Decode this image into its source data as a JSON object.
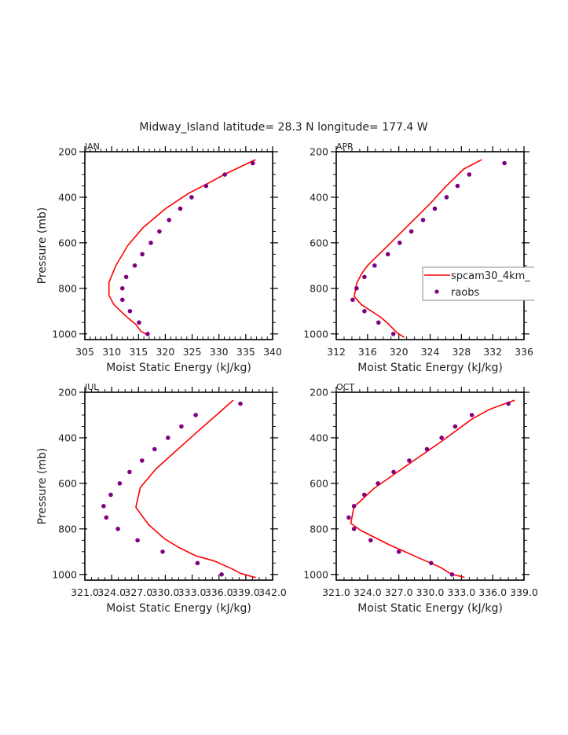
{
  "figure": {
    "title": "Midway_Island   latitude= 28.3 N longitude= 177.4 W",
    "colors": {
      "model": "#ff0000",
      "obs": "#800080",
      "axis": "#000000",
      "text": "#222222",
      "legend_border": "#888888"
    }
  },
  "chart_data": [
    {
      "type": "line",
      "panel": "JAN",
      "title": "JAN",
      "xlabel": "Moist Static Energy (kJ/kg)",
      "ylabel": "Pressure (mb)",
      "xlim": [
        305,
        340
      ],
      "ylim": [
        1025,
        200
      ],
      "xticks": [
        305,
        310,
        315,
        320,
        325,
        330,
        335,
        340
      ],
      "xtick_labels": [
        "305",
        "310",
        "315",
        "320",
        "325",
        "330",
        "335",
        "340"
      ],
      "yticks": [
        200,
        400,
        600,
        800,
        1000
      ],
      "ytick_labels": [
        "200",
        "400",
        "600",
        "800",
        "1000"
      ],
      "show_ylabel": true,
      "legend": false,
      "series": [
        {
          "name": "spcam30_4km_",
          "kind": "line",
          "x": [
            336.8,
            331.0,
            328.2,
            324.4,
            320.1,
            315.9,
            313.0,
            310.8,
            309.5,
            309.5,
            310.4,
            313.0,
            314.5,
            315.4,
            316.6
          ],
          "y": [
            235,
            300,
            336,
            382,
            449,
            532,
            612,
            699,
            774,
            831,
            871,
            929,
            958,
            987,
            1004
          ]
        },
        {
          "name": "raobs",
          "kind": "scatter",
          "x": [
            336.3,
            331.1,
            327.6,
            324.9,
            322.8,
            320.7,
            318.9,
            317.3,
            315.7,
            314.3,
            312.7,
            312.0,
            312.0,
            313.4,
            315.1,
            316.7
          ],
          "y": [
            250,
            300,
            350,
            400,
            450,
            500,
            550,
            600,
            650,
            700,
            750,
            800,
            850,
            900,
            950,
            1000
          ]
        }
      ]
    },
    {
      "type": "line",
      "panel": "APR",
      "title": "APR",
      "xlabel": "Moist Static Energy (kJ/kg)",
      "ylabel": "Pressure (mb)",
      "xlim": [
        312,
        336
      ],
      "ylim": [
        1025,
        200
      ],
      "xticks": [
        312,
        316,
        320,
        324,
        328,
        332,
        336
      ],
      "xtick_labels": [
        "312",
        "316",
        "320",
        "324",
        "328",
        "332",
        "336"
      ],
      "yticks": [
        200,
        400,
        600,
        800,
        1000
      ],
      "ytick_labels": [
        "200",
        "400",
        "600",
        "800",
        "1000"
      ],
      "show_ylabel": false,
      "legend": true,
      "series": [
        {
          "name": "spcam30_4km_",
          "kind": "line",
          "x": [
            330.6,
            328.3,
            326.0,
            324.0,
            321.3,
            318.6,
            316.0,
            315.2,
            314.6,
            314.3,
            315.2,
            317.6,
            318.6,
            319.8,
            320.7
          ],
          "y": [
            235,
            276,
            353,
            428,
            520,
            612,
            700,
            738,
            779,
            836,
            871,
            925,
            954,
            996,
            1015
          ]
        },
        {
          "name": "raobs",
          "kind": "scatter",
          "x": [
            333.5,
            329.0,
            327.5,
            326.1,
            324.6,
            323.1,
            321.6,
            320.1,
            318.6,
            316.9,
            315.6,
            314.6,
            314.1,
            315.6,
            317.4,
            319.3
          ],
          "y": [
            250,
            300,
            350,
            400,
            450,
            500,
            550,
            600,
            650,
            700,
            750,
            800,
            850,
            900,
            950,
            1000
          ]
        }
      ]
    },
    {
      "type": "line",
      "panel": "JUL",
      "title": "JUL",
      "xlabel": "Moist Static Energy (kJ/kg)",
      "ylabel": "Pressure (mb)",
      "xlim": [
        321,
        342
      ],
      "ylim": [
        1025,
        200
      ],
      "xticks": [
        321,
        324,
        327,
        330,
        333,
        336,
        339,
        342
      ],
      "xtick_labels": [
        "321.0",
        "324.0",
        "327.0",
        "330.0",
        "333.0",
        "336.0",
        "339.0",
        "342.0"
      ],
      "yticks": [
        200,
        400,
        600,
        800,
        1000
      ],
      "ytick_labels": [
        "200",
        "400",
        "600",
        "800",
        "1000"
      ],
      "show_ylabel": true,
      "legend": false,
      "series": [
        {
          "name": "spcam30_4km_",
          "kind": "line",
          "x": [
            337.6,
            333.2,
            329.0,
            327.2,
            326.7,
            328.1,
            329.9,
            331.6,
            333.4,
            335.5,
            337.5,
            338.4,
            340.1
          ],
          "y": [
            235,
            387,
            535,
            618,
            705,
            780,
            843,
            883,
            918,
            941,
            976,
            995,
            1014
          ]
        },
        {
          "name": "raobs",
          "kind": "scatter",
          "x": [
            338.4,
            333.4,
            331.8,
            330.3,
            328.8,
            327.4,
            326.0,
            324.9,
            323.9,
            323.1,
            323.4,
            324.7,
            326.9,
            329.7,
            333.6,
            336.3
          ],
          "y": [
            250,
            300,
            350,
            400,
            450,
            500,
            550,
            600,
            650,
            700,
            750,
            800,
            850,
            900,
            950,
            1000
          ]
        }
      ]
    },
    {
      "type": "line",
      "panel": "OCT",
      "title": "OCT",
      "xlabel": "Moist Static Energy (kJ/kg)",
      "ylabel": "Pressure (mb)",
      "xlim": [
        321,
        339
      ],
      "ylim": [
        1025,
        200
      ],
      "xticks": [
        321,
        324,
        327,
        330,
        333,
        336,
        339
      ],
      "xtick_labels": [
        "321.0",
        "324.0",
        "327.0",
        "330.0",
        "333.0",
        "336.0",
        "339.0"
      ],
      "yticks": [
        200,
        400,
        600,
        800,
        1000
      ],
      "ytick_labels": [
        "200",
        "400",
        "600",
        "800",
        "1000"
      ],
      "show_ylabel": false,
      "legend": false,
      "series": [
        {
          "name": "spcam30_4km_",
          "kind": "line",
          "x": [
            338.1,
            335.7,
            334.0,
            331.0,
            328.0,
            324.6,
            323.2,
            322.7,
            322.4,
            323.4,
            325.9,
            329.0,
            331.0,
            332.0,
            333.3
          ],
          "y": [
            235,
            275,
            318,
            419,
            514,
            623,
            683,
            701,
            776,
            808,
            866,
            929,
            969,
            998,
            1013
          ]
        },
        {
          "name": "raobs",
          "kind": "scatter",
          "x": [
            337.5,
            334.0,
            332.4,
            331.1,
            329.7,
            328.0,
            326.5,
            325.0,
            323.7,
            322.7,
            322.2,
            322.7,
            324.3,
            327.0,
            330.1,
            332.1
          ],
          "y": [
            250,
            300,
            350,
            400,
            450,
            500,
            550,
            600,
            650,
            700,
            750,
            800,
            850,
            900,
            950,
            1000
          ]
        }
      ]
    }
  ],
  "legend": {
    "entries": [
      {
        "label": "spcam30_4km_",
        "kind": "line"
      },
      {
        "label": "raobs",
        "kind": "marker"
      }
    ]
  }
}
